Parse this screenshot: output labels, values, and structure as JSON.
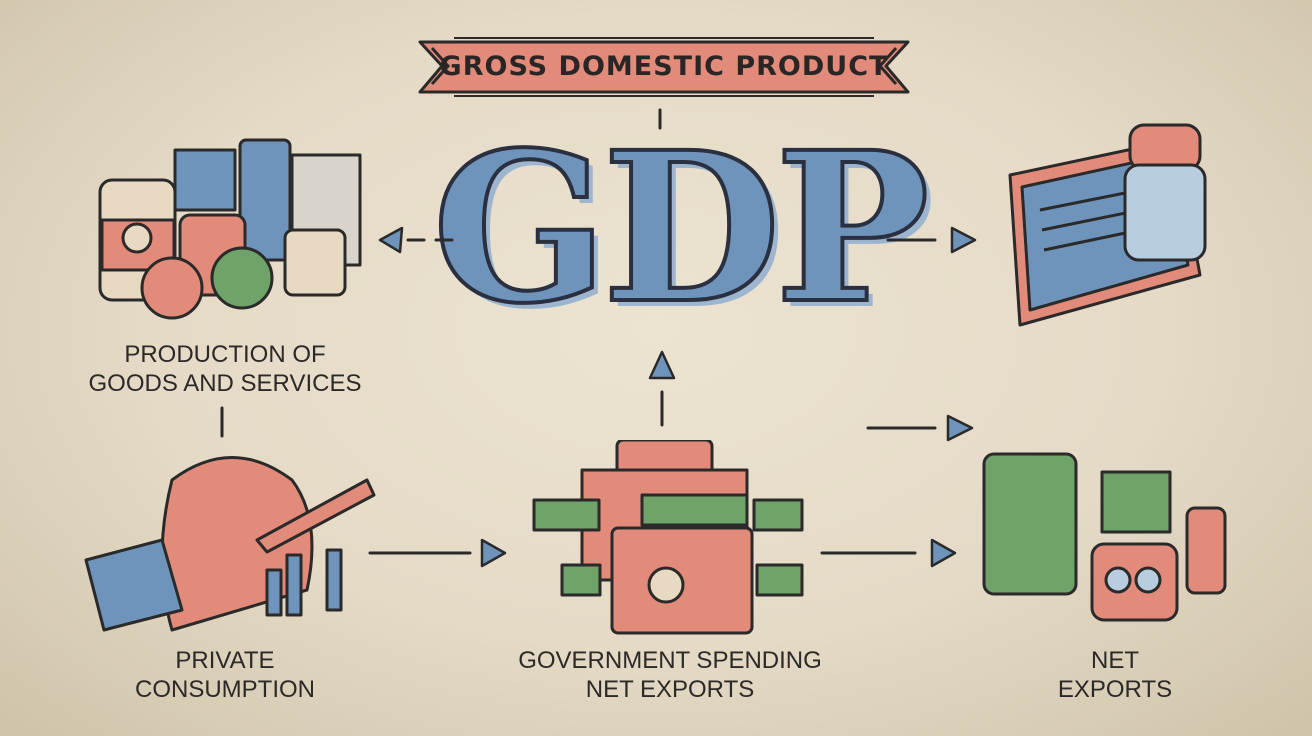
{
  "banner": {
    "title": "GROSS DOMESTIC PRODUCT"
  },
  "center": {
    "acronym": "GDP"
  },
  "nodes": {
    "production": {
      "line1": "PRODUCTION OF",
      "line2": "GOODS AND SERVICES"
    },
    "private_consumption": {
      "line1": "PRIVATE",
      "line2": "CONSUMPTION"
    },
    "government_spending": {
      "line1": "GOVERNMENT SPENDING",
      "line2": "NET EXPORTS"
    },
    "net_exports": {
      "line1": "NET",
      "line2": "EXPORTS"
    }
  },
  "colors": {
    "salmon": "#e28b7a",
    "blue": "#6f94bb",
    "green": "#6fa36a",
    "ink": "#2b2a2a",
    "paper": "#e8dfcc"
  },
  "icons": {
    "production": "stacked-goods-icon",
    "investment": "monitor-jar-icon",
    "private_consumption": "piggybank-box-icon",
    "government_spending": "money-folders-icon",
    "net_exports": "export-goods-icon"
  }
}
